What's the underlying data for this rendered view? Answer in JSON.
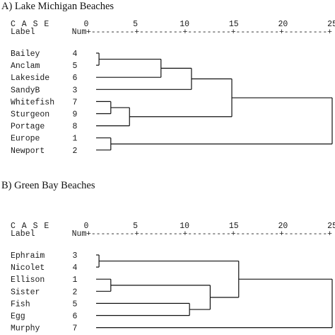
{
  "chart_data": [
    {
      "type": "dendrogram",
      "title": "A) Lake Michigan Beaches",
      "header_case": "C A S E",
      "header_label": "Label",
      "header_num": "Num",
      "scale_ticks": [
        0,
        5,
        10,
        15,
        20,
        25
      ],
      "scale_range": [
        0,
        25
      ],
      "scale_rule": "+---------+---------+---------+---------+---------+",
      "leaves": [
        {
          "label": "Bailey",
          "num": "4"
        },
        {
          "label": "Anclam",
          "num": "5"
        },
        {
          "label": "Lakeside",
          "num": "6"
        },
        {
          "label": "SandyB",
          "num": "3"
        },
        {
          "label": "Whitefish",
          "num": "7"
        },
        {
          "label": "Sturgeon",
          "num": "9"
        },
        {
          "label": "Portage",
          "num": "8"
        },
        {
          "label": "Europe",
          "num": "1"
        },
        {
          "label": "Newport",
          "num": "2"
        }
      ],
      "merges": [
        {
          "a": 0,
          "b": 1,
          "distance": 1.3
        },
        {
          "a": 9,
          "b": 2,
          "distance": 7.6
        },
        {
          "a": 10,
          "b": 3,
          "distance": 10.7
        },
        {
          "a": 4,
          "b": 5,
          "distance": 2.5
        },
        {
          "a": 12,
          "b": 6,
          "distance": 4.4
        },
        {
          "a": 11,
          "b": 13,
          "distance": 14.8
        },
        {
          "a": 7,
          "b": 8,
          "distance": 2.5
        },
        {
          "a": 14,
          "b": 15,
          "distance": 25.0
        }
      ]
    },
    {
      "type": "dendrogram",
      "title": "B) Green Bay Beaches",
      "header_case": "C A S E",
      "header_label": "Label",
      "header_num": "Num",
      "scale_ticks": [
        0,
        5,
        10,
        15,
        20,
        25
      ],
      "scale_range": [
        0,
        25
      ],
      "scale_rule": "+---------+---------+---------+---------+---------+",
      "leaves": [
        {
          "label": "Ephraim",
          "num": "3"
        },
        {
          "label": "Nicolet",
          "num": "4"
        },
        {
          "label": "Ellison",
          "num": "1"
        },
        {
          "label": "Sister",
          "num": "2"
        },
        {
          "label": "Fish",
          "num": "5"
        },
        {
          "label": "Egg",
          "num": "6"
        },
        {
          "label": "Murphy",
          "num": "7"
        }
      ],
      "merges": [
        {
          "a": 0,
          "b": 1,
          "distance": 1.3
        },
        {
          "a": 2,
          "b": 3,
          "distance": 2.5
        },
        {
          "a": 4,
          "b": 5,
          "distance": 10.5
        },
        {
          "a": 8,
          "b": 9,
          "distance": 12.6
        },
        {
          "a": 7,
          "b": 10,
          "distance": 15.5
        },
        {
          "a": 11,
          "b": 6,
          "distance": 25.0
        }
      ]
    }
  ]
}
